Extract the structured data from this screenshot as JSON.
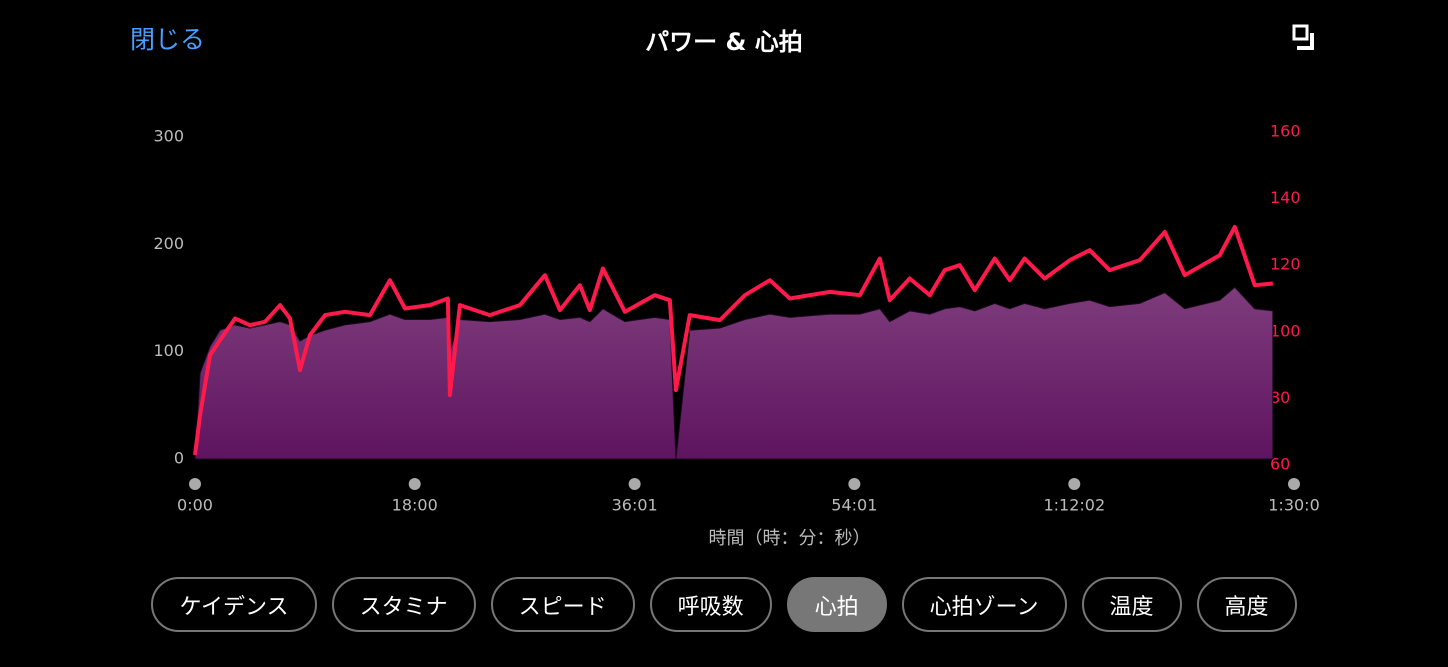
{
  "header": {
    "close": "閉じる",
    "title": "パワー & 心拍"
  },
  "chart_data": {
    "type": "area",
    "x": [
      0,
      25,
      74,
      123,
      197,
      270,
      344,
      418,
      467,
      516,
      565,
      639,
      737,
      860,
      958,
      1032,
      1155,
      1243,
      1253,
      1302,
      1449,
      1597,
      1720,
      1794,
      1892,
      1941,
      2005,
      2113,
      2260,
      2334,
      2364,
      2432,
      2580,
      2703,
      2826,
      2924,
      3120,
      3268,
      3366,
      3415,
      3513,
      3612,
      3685,
      3759,
      3833,
      3931,
      4005,
      4078,
      4177,
      4300,
      4398,
      4496,
      4644,
      4767,
      4865,
      5037,
      5111,
      5209,
      5298
    ],
    "series": [
      {
        "type": "area",
        "color": "#6e2470",
        "values": [
          0,
          80,
          105,
          120,
          125,
          122,
          125,
          128,
          125,
          110,
          115,
          120,
          125,
          128,
          135,
          130,
          130,
          132,
          100,
          130,
          128,
          130,
          135,
          130,
          132,
          128,
          140,
          128,
          132,
          130,
          0,
          120,
          122,
          130,
          135,
          132,
          135,
          135,
          140,
          128,
          138,
          135,
          140,
          142,
          138,
          145,
          140,
          145,
          140,
          145,
          148,
          142,
          145,
          155,
          140,
          148,
          160,
          140,
          138
        ]
      },
      {
        "type": "line",
        "axis": "y2",
        "color": "#ff1a4b",
        "values": [
          63,
          75,
          93,
          97.5,
          104,
          102,
          103,
          108,
          104,
          88.5,
          99,
          105,
          106,
          105,
          115.5,
          107,
          108,
          110,
          81,
          108,
          105,
          108,
          117,
          106.5,
          114,
          106.5,
          119,
          106,
          111,
          109.5,
          82.5,
          105,
          103.5,
          111,
          115.5,
          110,
          112,
          111,
          122,
          109.5,
          116,
          111,
          118.5,
          120,
          112.5,
          122,
          115.5,
          122,
          116,
          121.5,
          124.5,
          118.5,
          121.5,
          130,
          117,
          123,
          131.5,
          114,
          114.5
        ]
      }
    ],
    "xlim": [
      0,
      5402
    ],
    "xticks": [
      {
        "value": 0,
        "label": "0:00"
      },
      {
        "value": 1080,
        "label": "18:00"
      },
      {
        "value": 2161,
        "label": "36:01"
      },
      {
        "value": 3241,
        "label": "54:01"
      },
      {
        "value": 4322,
        "label": "1:12:02"
      },
      {
        "value": 5402,
        "label": "1:30:0"
      }
    ],
    "ylim": [
      0,
      300
    ],
    "yticks": [
      0,
      100,
      200,
      300
    ],
    "y2lim": [
      60,
      160
    ],
    "y2ticks": [
      60,
      80,
      100,
      120,
      140,
      160
    ],
    "y2color": "#ff1a4b",
    "xlabel": "時間（時：分：秒）"
  },
  "buttons": {
    "labels": [
      "ケイデンス",
      "スタミナ",
      "スピード",
      "呼吸数",
      "心拍",
      "心拍ゾーン",
      "温度",
      "高度"
    ],
    "selected": 4
  }
}
